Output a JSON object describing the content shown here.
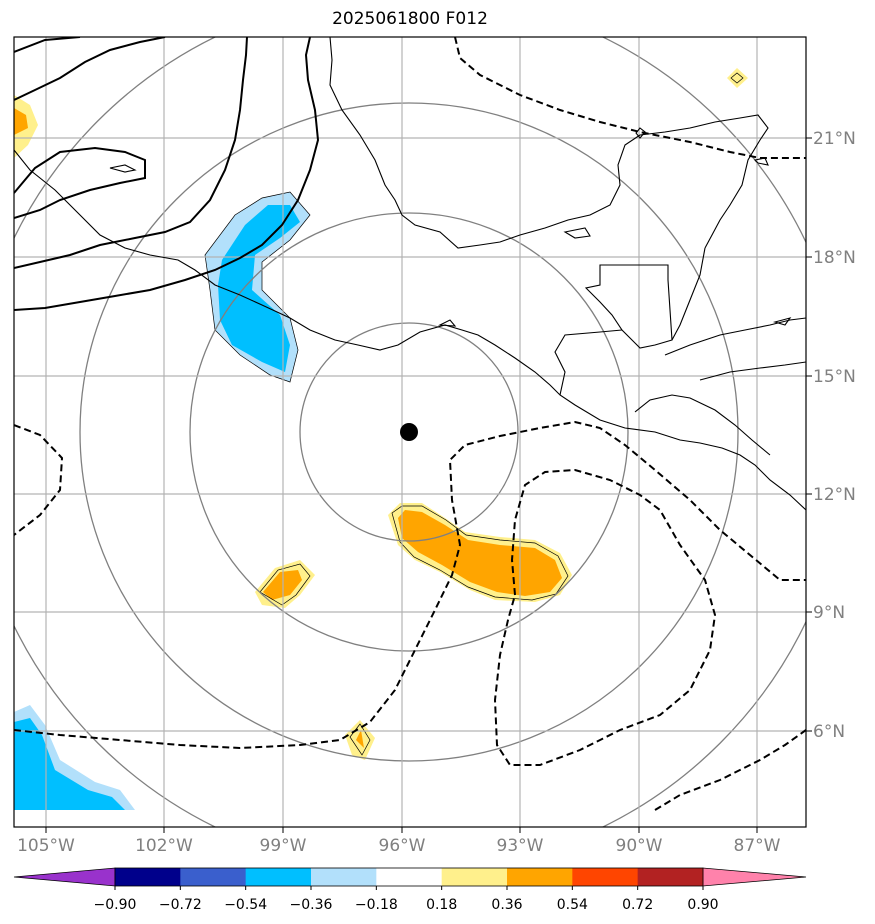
{
  "map": {
    "title": "2025061800 F012",
    "lon_labels": [
      "105°W",
      "102°W",
      "99°W",
      "96°W",
      "93°W",
      "90°W",
      "87°W"
    ],
    "lat_labels": [
      "21°N",
      "18°N",
      "15°N",
      "12°N",
      "9°N",
      "6°N"
    ],
    "center_marker": "storm-center"
  },
  "colorbar": {
    "colors": [
      "#9932cc",
      "#00008b",
      "#3a5fcd",
      "#00bfff",
      "#b2e0fb",
      "#ffffff",
      "#fff08c",
      "#ffa500",
      "#ff4500",
      "#b22222",
      "#ff82ab"
    ],
    "labels": [
      "−0.90",
      "−0.72",
      "−0.54",
      "−0.36",
      "−0.18",
      "0.18",
      "0.36",
      "0.54",
      "0.72",
      "0.90"
    ]
  },
  "legend_colors": {
    "positive_light": "#fff08c",
    "positive_mid": "#ffa500",
    "negative_light": "#b2e0fb",
    "negative_mid": "#00bfff"
  }
}
